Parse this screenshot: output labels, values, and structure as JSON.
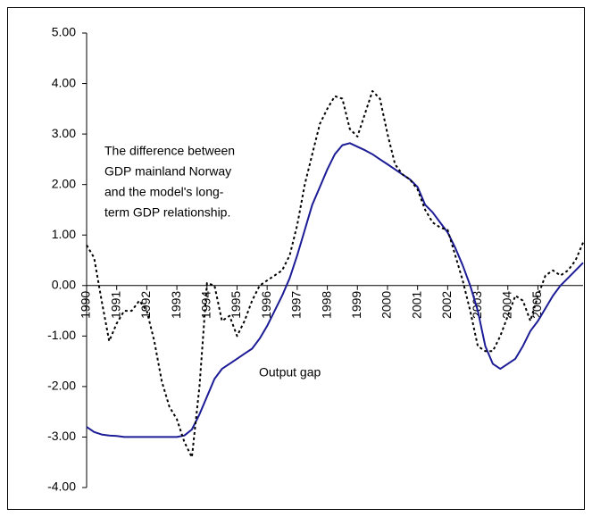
{
  "chart_data": {
    "type": "line",
    "annotations": [
      [
        "The difference between",
        "GDP mainland Norway",
        "and the model's long-",
        "term GDP relationship."
      ],
      [
        "Output gap"
      ]
    ],
    "x": [
      1990,
      1990.25,
      1990.5,
      1990.75,
      1991,
      1991.25,
      1991.5,
      1991.75,
      1992,
      1992.25,
      1992.5,
      1992.75,
      1993,
      1993.25,
      1993.5,
      1993.75,
      1994,
      1994.25,
      1994.5,
      1994.75,
      1995,
      1995.25,
      1995.5,
      1995.75,
      1996,
      1996.25,
      1996.5,
      1996.75,
      1997,
      1997.25,
      1997.5,
      1997.75,
      1998,
      1998.25,
      1998.5,
      1998.75,
      1999,
      1999.25,
      1999.5,
      1999.75,
      2000,
      2000.25,
      2000.5,
      2000.75,
      2001,
      2001.25,
      2001.5,
      2001.75,
      2002,
      2002.25,
      2002.5,
      2002.75,
      2003,
      2003.25,
      2003.5,
      2003.75,
      2004,
      2004.25,
      2004.5,
      2004.75,
      2005,
      2005.25,
      2005.5,
      2005.75,
      2006,
      2006.25,
      2006.5
    ],
    "series": [
      {
        "color": "#1c1c96",
        "dash": false,
        "values": [
          -2.8,
          -2.9,
          -2.95,
          -2.97,
          -2.98,
          -3,
          -3,
          -3,
          -3,
          -3,
          -3,
          -3,
          -3,
          -2.97,
          -2.85,
          -2.55,
          -2.2,
          -1.85,
          -1.65,
          -1.55,
          -1.45,
          -1.35,
          -1.25,
          -1.05,
          -0.8,
          -0.5,
          -0.2,
          0.15,
          0.6,
          1.1,
          1.6,
          1.95,
          2.3,
          2.6,
          2.78,
          2.82,
          2.75,
          2.68,
          2.6,
          2.5,
          2.4,
          2.3,
          2.2,
          2.1,
          1.95,
          1.6,
          1.45,
          1.25,
          1.05,
          0.75,
          0.4,
          0,
          -0.5,
          -1.2,
          -1.55,
          -1.65,
          -1.55,
          -1.45,
          -1.2,
          -0.9,
          -0.7,
          -0.45,
          -0.2,
          0,
          0.15,
          0.3,
          0.45
        ]
      },
      {
        "color": "#000000",
        "dash": true,
        "values": [
          0.8,
          0.55,
          -0.3,
          -1.1,
          -0.75,
          -0.5,
          -0.5,
          -0.3,
          -0.5,
          -1.1,
          -1.9,
          -2.4,
          -2.65,
          -3.1,
          -3.4,
          -2.0,
          0.05,
          0,
          -0.7,
          -0.6,
          -1,
          -0.7,
          -0.3,
          0,
          0.1,
          0.2,
          0.3,
          0.6,
          1.2,
          2,
          2.6,
          3.2,
          3.5,
          3.75,
          3.7,
          3.1,
          2.95,
          3.4,
          3.85,
          3.7,
          3,
          2.4,
          2.2,
          2.1,
          1.9,
          1.5,
          1.25,
          1.15,
          1.1,
          0.6,
          0.1,
          -0.5,
          -1.2,
          -1.3,
          -1.3,
          -1,
          -0.6,
          -0.2,
          -0.3,
          -0.7,
          -0.2,
          0.2,
          0.3,
          0.2,
          0.3,
          0.5,
          0.85
        ]
      }
    ],
    "xlim": [
      1990,
      2006.5
    ],
    "xticks": [
      1990,
      1991,
      1992,
      1993,
      1994,
      1995,
      1996,
      1997,
      1998,
      1999,
      2000,
      2001,
      2002,
      2003,
      2004,
      2005
    ],
    "ylim": [
      -4,
      5
    ],
    "yticks": [
      {
        "value": -4,
        "label": "-4.00"
      },
      {
        "value": -3,
        "label": "-3.00"
      },
      {
        "value": -2,
        "label": "-2.00"
      },
      {
        "value": -1,
        "label": "-1.00"
      },
      {
        "value": 0,
        "label": "0.00"
      },
      {
        "value": 1,
        "label": "1.00"
      },
      {
        "value": 2,
        "label": "2.00"
      },
      {
        "value": 3,
        "label": "3.00"
      },
      {
        "value": 4,
        "label": "4.00"
      },
      {
        "value": 5,
        "label": "5.00"
      }
    ],
    "grid": false
  }
}
